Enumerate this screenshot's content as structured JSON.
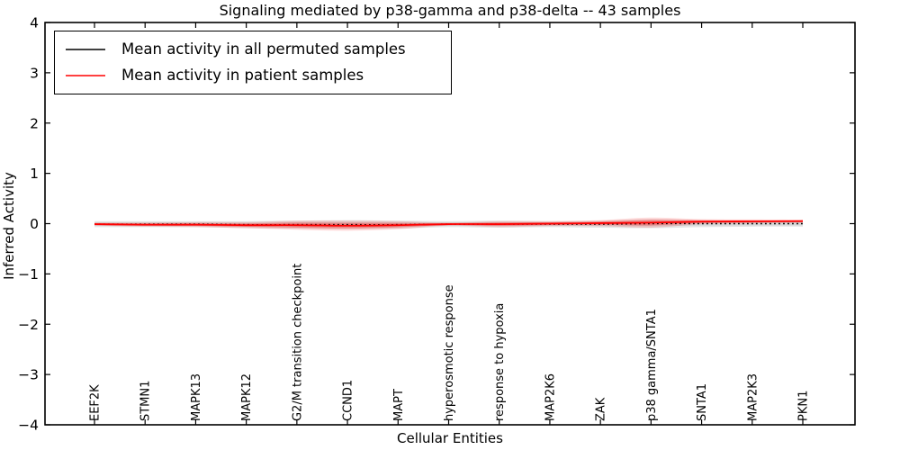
{
  "title": "Signaling mediated by p38-gamma and p38-delta -- 43 samples",
  "colors": {
    "foreground": "#000000",
    "background": "#ffffff",
    "permuted_line": "#000000",
    "patient_line": "#ff0000",
    "permuted_band": "#888888",
    "patient_band": "#ff0000"
  },
  "legend": {
    "items": [
      {
        "label": "Mean activity in all permuted samples",
        "color": "#000000"
      },
      {
        "label": "Mean activity in patient samples",
        "color": "#ff0000"
      }
    ]
  },
  "chart_data": {
    "type": "line",
    "title": "Signaling mediated by p38-gamma and p38-delta -- 43 samples",
    "xlabel": "Cellular Entities",
    "ylabel": "Inferred Activity",
    "ylim": [
      -4,
      4
    ],
    "yticks": [
      4,
      3,
      2,
      1,
      0,
      -1,
      -2,
      -3,
      -4
    ],
    "grid": false,
    "legend_position": "upper left",
    "categories": [
      "EEF2K",
      "STMN1",
      "MAPK13",
      "MAPK12",
      "G2/M transition checkpoint",
      "CCND1",
      "MAPT",
      "hyperosmotic response",
      "response to hypoxia",
      "MAP2K6",
      "ZAK",
      "p38 gamma/SNTA1",
      "SNTA1",
      "MAP2K3",
      "PKN1"
    ],
    "series": [
      {
        "name": "Mean activity in all permuted samples",
        "color": "#000000",
        "line_style": "dotted",
        "values": [
          -0.01,
          -0.01,
          -0.01,
          -0.02,
          -0.02,
          -0.02,
          -0.02,
          -0.01,
          -0.01,
          -0.01,
          -0.01,
          0.0,
          0.0,
          0.0,
          0.0
        ]
      },
      {
        "name": "Mean activity in patient samples",
        "color": "#ff0000",
        "line_style": "solid",
        "values": [
          -0.01,
          -0.02,
          -0.02,
          -0.03,
          -0.03,
          -0.04,
          -0.03,
          -0.01,
          -0.01,
          0.0,
          0.01,
          0.02,
          0.04,
          0.045,
          0.05
        ]
      }
    ],
    "bands": [
      {
        "name": "permuted-std",
        "series_index": 0,
        "color": "#888888",
        "opacity_outer": 0.22,
        "opacity_inner": 0.18,
        "half_widths": [
          0.06,
          0.06,
          0.06,
          0.07,
          0.08,
          0.09,
          0.08,
          0.06,
          0.07,
          0.06,
          0.07,
          0.09,
          0.07,
          0.06,
          0.06
        ]
      },
      {
        "name": "patient-std",
        "series_index": 1,
        "color": "#ff0000",
        "opacity_outer": 0.14,
        "opacity_inner": 0.28,
        "half_widths": [
          0.03,
          0.04,
          0.05,
          0.06,
          0.09,
          0.1,
          0.08,
          0.03,
          0.06,
          0.05,
          0.06,
          0.1,
          0.05,
          0.04,
          0.03
        ]
      }
    ]
  }
}
